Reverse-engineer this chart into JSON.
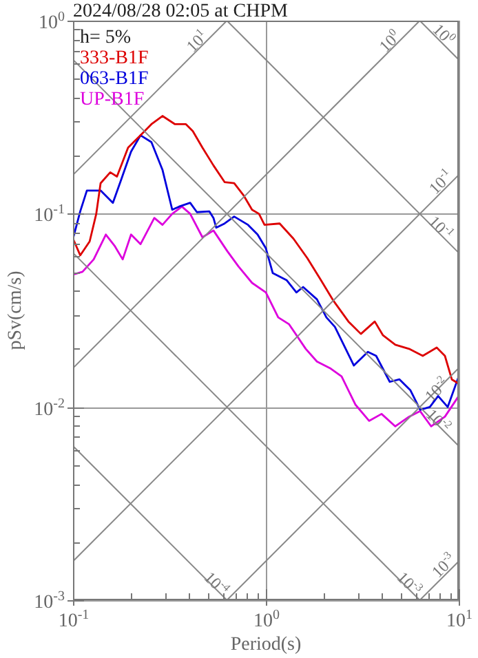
{
  "chart_data": {
    "type": "line",
    "title": "2024/08/28 02:05 at CHPM",
    "xlabel": "Period(s)",
    "ylabel": "pSv(cm/s)",
    "log": "xy",
    "grid": true,
    "legend": "top left",
    "marker": "none",
    "line_style": "solid",
    "xlim": [
      0.1,
      10
    ],
    "ylim": [
      0.001,
      1
    ],
    "xticks": [
      {
        "value": 0.1,
        "label": "10$^{-1}$"
      },
      {
        "value": 0.2,
        "label": null
      },
      {
        "value": 0.3,
        "label": null
      },
      {
        "value": 0.4,
        "label": null
      },
      {
        "value": 0.5,
        "label": null
      },
      {
        "value": 0.6,
        "label": null
      },
      {
        "value": 0.7,
        "label": null
      },
      {
        "value": 0.8,
        "label": null
      },
      {
        "value": 0.9,
        "label": null
      },
      {
        "value": 1,
        "label": "10$^{0}$"
      },
      {
        "value": 2,
        "label": null
      },
      {
        "value": 3,
        "label": null
      },
      {
        "value": 4,
        "label": null
      },
      {
        "value": 5,
        "label": null
      },
      {
        "value": 6,
        "label": null
      },
      {
        "value": 7,
        "label": null
      },
      {
        "value": 8,
        "label": null
      },
      {
        "value": 9,
        "label": null
      },
      {
        "value": 10,
        "label": "10$^{1}$"
      }
    ],
    "yticks": [
      {
        "value": 0.001,
        "label": "10$^{-3}$"
      },
      {
        "value": 0.002,
        "label": null
      },
      {
        "value": 0.003,
        "label": null
      },
      {
        "value": 0.004,
        "label": null
      },
      {
        "value": 0.005,
        "label": null
      },
      {
        "value": 0.006,
        "label": null
      },
      {
        "value": 0.007,
        "label": null
      },
      {
        "value": 0.008,
        "label": null
      },
      {
        "value": 0.009,
        "label": null
      },
      {
        "value": 0.01,
        "label": "10$^{-2}$"
      },
      {
        "value": 0.02,
        "label": null
      },
      {
        "value": 0.03,
        "label": null
      },
      {
        "value": 0.04,
        "label": null
      },
      {
        "value": 0.05,
        "label": null
      },
      {
        "value": 0.06,
        "label": null
      },
      {
        "value": 0.07,
        "label": null
      },
      {
        "value": 0.08,
        "label": null
      },
      {
        "value": 0.09,
        "label": null
      },
      {
        "value": 0.1,
        "label": "10$^{-1}$"
      },
      {
        "value": 0.2,
        "label": null
      },
      {
        "value": 0.3,
        "label": null
      },
      {
        "value": 0.4,
        "label": null
      },
      {
        "value": 0.5,
        "label": null
      },
      {
        "value": 0.6,
        "label": null
      },
      {
        "value": 0.7,
        "label": null
      },
      {
        "value": 0.8,
        "label": null
      },
      {
        "value": 0.9,
        "label": null
      },
      {
        "value": 1,
        "label": "10$^{0}$"
      }
    ],
    "annotations": [
      "h= 5%",
      {
        "text": "10$^{1}$",
        "x": 0.439,
        "y": 0.781
      },
      {
        "text": "10$^{0}$",
        "x": 4.39,
        "y": 0.781
      },
      {
        "text": "10$^{-1}$",
        "x": 8.07,
        "y": 0.146
      },
      {
        "text": "10$^{-2}$",
        "x": 7.69,
        "y": 0.0123
      },
      {
        "text": "10$^{-3}$",
        "x": 8.35,
        "y": 0.00151
      },
      {
        "text": "10$^{0}$",
        "x": 8.35,
        "y": 0.849
      },
      {
        "text": "10$^{-1}$",
        "x": 8.07,
        "y": 0.0848
      },
      {
        "text": "10$^{-2}$",
        "x": 7.82,
        "y": 0.00848
      },
      {
        "text": "10$^{-3}$",
        "x": 5.53,
        "y": 0.00122
      },
      {
        "text": "10$^{-4}$",
        "x": 0.553,
        "y": 0.00122
      }
    ],
    "series": [
      {
        "color": "#888888",
        "x": [
          6.283,
          10
        ],
        "values": [
          1,
          0.628
        ]
      },
      {
        "color": "#888888",
        "x": [
          0.628,
          10
        ],
        "values": [
          1,
          0.0628
        ]
      },
      {
        "color": "#888888",
        "x": [
          0.1,
          10
        ],
        "values": [
          0.628,
          0.00628
        ]
      },
      {
        "color": "#888888",
        "x": [
          0.1,
          6.283
        ],
        "values": [
          0.0628,
          0.001
        ]
      },
      {
        "color": "#888888",
        "x": [
          0.1,
          0.628
        ],
        "values": [
          0.00628,
          0.001
        ]
      },
      {
        "color": "#888888",
        "x": [
          0.1,
          0.628
        ],
        "values": [
          0.159,
          1
        ]
      },
      {
        "color": "#888888",
        "x": [
          0.1,
          6.283
        ],
        "values": [
          0.0159,
          1
        ]
      },
      {
        "color": "#888888",
        "x": [
          0.1,
          10
        ],
        "values": [
          0.00159,
          0.159
        ]
      },
      {
        "color": "#888888",
        "x": [
          0.628,
          10
        ],
        "values": [
          0.001,
          0.0159
        ]
      },
      {
        "color": "#888888",
        "x": [
          6.283,
          10
        ],
        "values": [
          0.001,
          0.00159
        ]
      },
      {
        "name": "333-B1F",
        "color": "#dd0000",
        "x": [
          0.1,
          0.109,
          0.122,
          0.132,
          0.139,
          0.156,
          0.169,
          0.193,
          0.224,
          0.255,
          0.291,
          0.338,
          0.385,
          0.418,
          0.469,
          0.535,
          0.611,
          0.685,
          0.769,
          0.848,
          0.921,
          0.984,
          1.179,
          1.39,
          1.64,
          1.93,
          2.24,
          2.68,
          3.11,
          3.67,
          4.05,
          4.69,
          5.53,
          6.51,
          7.69,
          8.48,
          9.21,
          10
        ],
        "values": [
          0.0744,
          0.061,
          0.072,
          0.1,
          0.144,
          0.164,
          0.156,
          0.22,
          0.255,
          0.291,
          0.321,
          0.291,
          0.291,
          0.268,
          0.22,
          0.178,
          0.146,
          0.144,
          0.124,
          0.105,
          0.1,
          0.0877,
          0.0891,
          0.0744,
          0.059,
          0.0454,
          0.0355,
          0.0277,
          0.0239,
          0.0277,
          0.0235,
          0.021,
          0.02,
          0.0184,
          0.0203,
          0.0184,
          0.0139,
          0.0132
        ]
      },
      {
        "name": "063-B1F",
        "color": "#0000dd",
        "x": [
          0.1,
          0.109,
          0.118,
          0.139,
          0.161,
          0.178,
          0.2,
          0.224,
          0.255,
          0.291,
          0.327,
          0.355,
          0.405,
          0.439,
          0.509,
          0.535,
          0.553,
          0.611,
          0.685,
          0.808,
          0.906,
          1,
          1.086,
          1.28,
          1.44,
          1.56,
          1.84,
          2.06,
          2.28,
          2.86,
          3.38,
          3.73,
          4.39,
          4.93,
          5.62,
          6.31,
          7.08,
          7.82,
          8.77,
          10
        ],
        "values": [
          0.0744,
          0.103,
          0.132,
          0.132,
          0.114,
          0.151,
          0.21,
          0.255,
          0.235,
          0.169,
          0.105,
          0.109,
          0.114,
          0.102,
          0.103,
          0.0952,
          0.0848,
          0.0891,
          0.0968,
          0.0877,
          0.0781,
          0.0663,
          0.0493,
          0.0454,
          0.0392,
          0.0418,
          0.0361,
          0.0291,
          0.026,
          0.0164,
          0.0193,
          0.0184,
          0.0135,
          0.0139,
          0.0122,
          0.00968,
          0.01,
          0.0114,
          0.01,
          0.0144
        ]
      },
      {
        "name": "UP-B1F",
        "color": "#dd00dd",
        "x": [
          0.1,
          0.112,
          0.128,
          0.148,
          0.164,
          0.181,
          0.2,
          0.224,
          0.264,
          0.291,
          0.327,
          0.367,
          0.405,
          0.469,
          0.535,
          0.631,
          0.72,
          0.848,
          1,
          1.159,
          1.32,
          1.61,
          1.84,
          2.17,
          2.47,
          2.91,
          3.43,
          3.98,
          4.69,
          5.53,
          6.31,
          7.2,
          8.48,
          10
        ],
        "values": [
          0.0485,
          0.0501,
          0.0581,
          0.0781,
          0.0685,
          0.0581,
          0.0781,
          0.0697,
          0.0952,
          0.0877,
          0.1,
          0.109,
          0.1,
          0.0756,
          0.082,
          0.0641,
          0.0535,
          0.0439,
          0.0392,
          0.0291,
          0.0268,
          0.02,
          0.0172,
          0.0158,
          0.0144,
          0.0103,
          0.00848,
          0.00921,
          0.00794,
          0.00891,
          0.00952,
          0.00794,
          0.00891,
          0.0114
        ]
      }
    ]
  }
}
